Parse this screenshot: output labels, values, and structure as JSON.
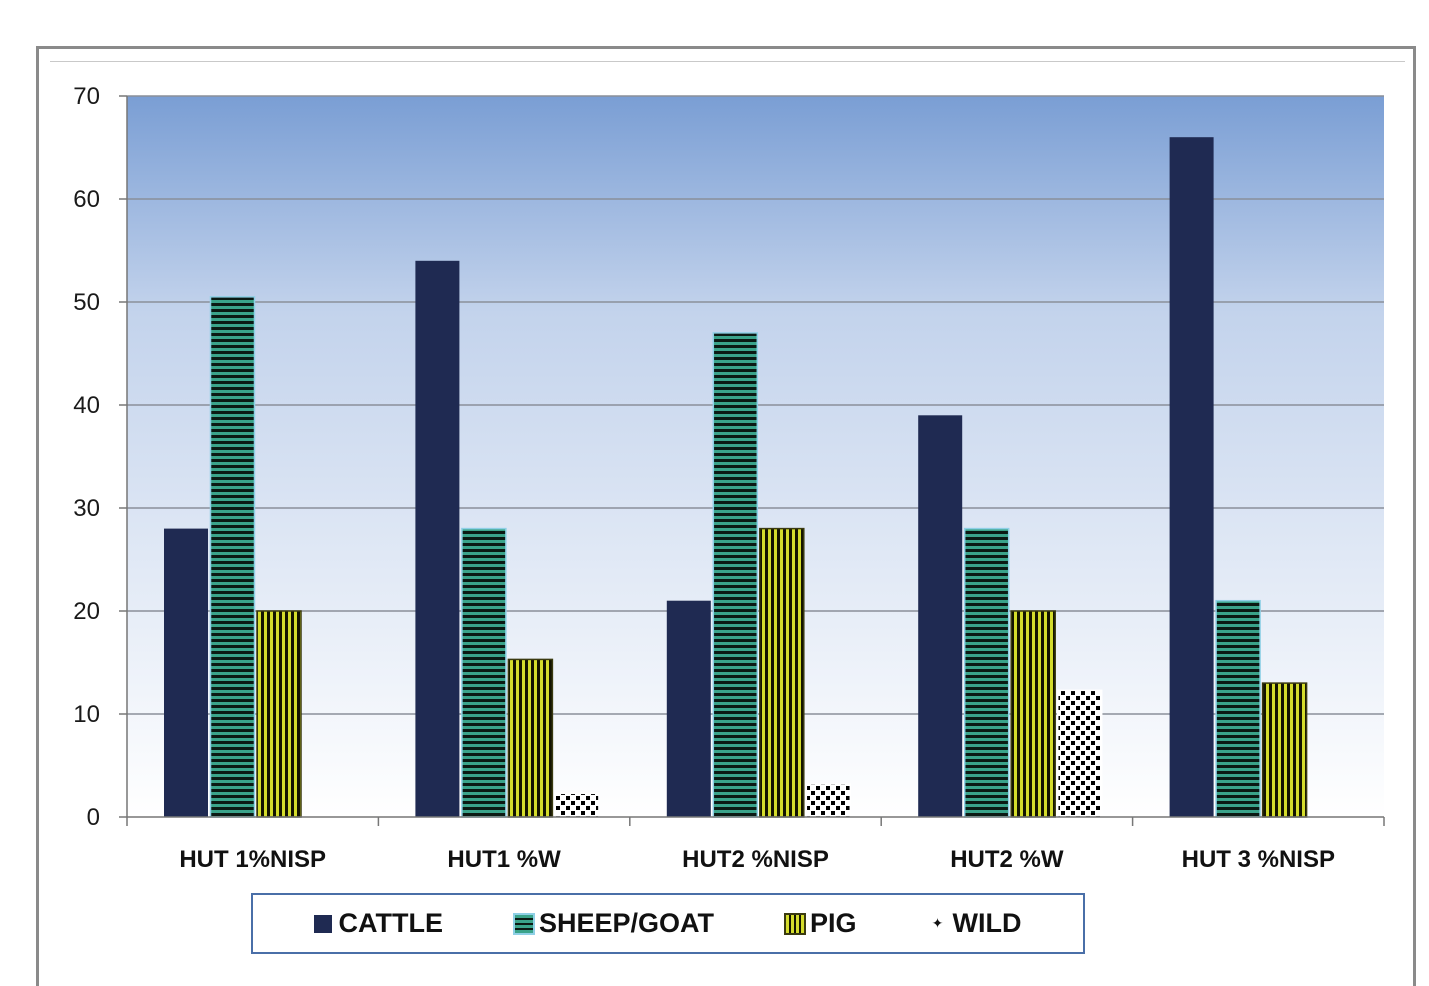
{
  "chart_data": {
    "type": "bar",
    "categories": [
      "HUT 1%NISP",
      "HUT1 %W",
      "HUT2 %NISP",
      "HUT2 %W",
      "HUT 3 %NISP"
    ],
    "series": [
      {
        "name": "CATTLE",
        "values": [
          28,
          54,
          21,
          39,
          66
        ]
      },
      {
        "name": "SHEEP/GOAT",
        "values": [
          50.5,
          28,
          47,
          28,
          21
        ]
      },
      {
        "name": "PIG",
        "values": [
          20,
          15.3,
          28,
          20,
          13
        ]
      },
      {
        "name": "WILD",
        "values": [
          0,
          2.3,
          3.2,
          12.3,
          0
        ]
      }
    ],
    "ylim": [
      0,
      70
    ],
    "yticks": [
      "0",
      "10",
      "20",
      "30",
      "40",
      "50",
      "60",
      "70"
    ],
    "grid": true,
    "legend": "bottom",
    "colors": {
      "CATTLE": "#1f2a52",
      "SHEEP/GOAT": "#3aa38a",
      "PIG": "#d4dc2c",
      "WILD": "#ffffff",
      "plot_top": "#7a9ed4",
      "plot_bottom": "#ffffff"
    }
  }
}
